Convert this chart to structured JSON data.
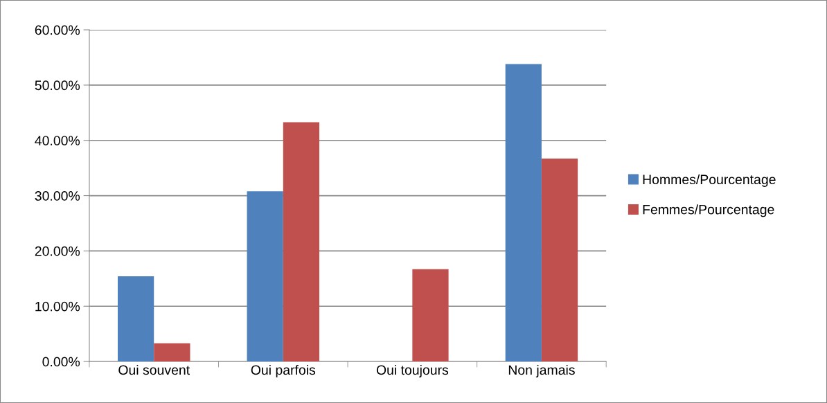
{
  "chart_data": {
    "type": "bar",
    "categories": [
      "Oui souvent",
      "Oui parfois",
      "Oui toujours",
      "Non jamais"
    ],
    "series": [
      {
        "name": "Hommes/Pourcentage",
        "color": "#4f81bd",
        "values": [
          15.4,
          30.8,
          0,
          53.8
        ]
      },
      {
        "name": "Femmes/Pourcentage",
        "color": "#c0504d",
        "values": [
          3.3,
          43.3,
          16.7,
          36.7
        ]
      }
    ],
    "ylim": [
      0,
      60
    ],
    "yticks": [
      {
        "value": 0,
        "label": "0.00%"
      },
      {
        "value": 10,
        "label": "10.00%"
      },
      {
        "value": 20,
        "label": "20.00%"
      },
      {
        "value": 30,
        "label": "30.00%"
      },
      {
        "value": 40,
        "label": "40.00%"
      },
      {
        "value": 50,
        "label": "50.00%"
      },
      {
        "value": 60,
        "label": "60.00%"
      }
    ],
    "grid": "y",
    "legend": "right"
  }
}
